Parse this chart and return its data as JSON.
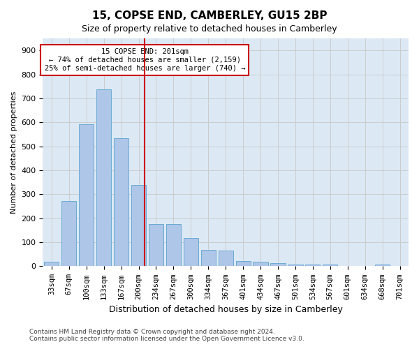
{
  "title": "15, COPSE END, CAMBERLEY, GU15 2BP",
  "subtitle": "Size of property relative to detached houses in Camberley",
  "xlabel": "Distribution of detached houses by size in Camberley",
  "ylabel": "Number of detached properties",
  "bar_labels": [
    "33sqm",
    "67sqm",
    "100sqm",
    "133sqm",
    "167sqm",
    "200sqm",
    "234sqm",
    "267sqm",
    "300sqm",
    "334sqm",
    "367sqm",
    "401sqm",
    "434sqm",
    "467sqm",
    "501sqm",
    "534sqm",
    "567sqm",
    "601sqm",
    "634sqm",
    "668sqm",
    "701sqm"
  ],
  "bar_heights": [
    20,
    273,
    592,
    738,
    535,
    340,
    175,
    175,
    118,
    67,
    65,
    22,
    20,
    12,
    8,
    7,
    7,
    0,
    0,
    7,
    0
  ],
  "bar_color": "#aec6e8",
  "bar_edgecolor": "#6aaad4",
  "vline_x": 5,
  "vline_color": "#cc0000",
  "ylim": [
    0,
    950
  ],
  "yticks": [
    0,
    100,
    200,
    300,
    400,
    500,
    600,
    700,
    800,
    900
  ],
  "annotation_text": "15 COPSE END: 201sqm\n← 74% of detached houses are smaller (2,159)\n25% of semi-detached houses are larger (740) →",
  "annotation_box_color": "#ffffff",
  "annotation_box_edgecolor": "#cc0000",
  "footer_line1": "Contains HM Land Registry data © Crown copyright and database right 2024.",
  "footer_line2": "Contains public sector information licensed under the Open Government Licence v3.0.",
  "background_color": "#ffffff",
  "grid_color": "#cccccc"
}
